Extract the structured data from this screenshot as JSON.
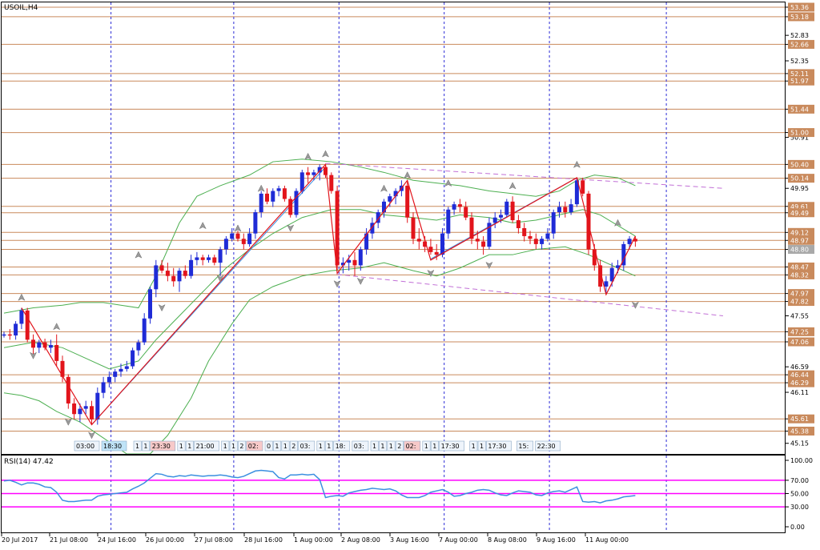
{
  "symbol": "USOIL,H4",
  "rsi_label": "RSI(14) 47.42",
  "colors": {
    "bull": "#1f2bd6",
    "bear": "#e2141b",
    "hline": "#c98a5c",
    "bollinger": "#4caf50",
    "trend": "#3b8fe0",
    "channel": "#c16fd6",
    "zigzag": "#e2141b",
    "rsi_line": "#3b8fe0",
    "rsi_level": "#ff00ff",
    "badge": "#c98a5c"
  },
  "axis_labels": [
    "53.36",
    "53.18",
    "52.83",
    "52.66",
    "52.35",
    "52.11",
    "51.97",
    "51.44",
    "51.00",
    "50.91",
    "50.40",
    "50.14",
    "49.95",
    "49.61",
    "49.49",
    "49.12",
    "48.97",
    "48.80",
    "48.47",
    "48.32",
    "47.97",
    "47.82",
    "47.55",
    "47.25",
    "47.06",
    "46.59",
    "46.44",
    "46.29",
    "46.11",
    "45.61",
    "45.38",
    "45.15"
  ],
  "price_badges": [
    "53.36",
    "53.18",
    "52.66",
    "52.11",
    "51.97",
    "51.44",
    "51.00",
    "50.40",
    "50.14",
    "49.61",
    "49.49",
    "49.12",
    "48.97",
    "48.80",
    "48.47",
    "48.32",
    "47.97",
    "47.82",
    "47.25",
    "47.06",
    "46.44",
    "46.29",
    "45.61",
    "45.38"
  ],
  "time_labels": [
    "20 Jul 2017",
    "21 Jul 08:00",
    "24 Jul 16:00",
    "26 Jul 00:00",
    "27 Jul 08:00",
    "28 Jul 16:00",
    "1 Aug 00:00",
    "2 Aug 08:00",
    "3 Aug 16:00",
    "7 Aug 00:00",
    "8 Aug 08:00",
    "9 Aug 16:00",
    "11 Aug 00:00"
  ],
  "rsi_axis": [
    "100.00",
    "70.00",
    "50.00",
    "30.00",
    "0.00"
  ],
  "event_tags": [
    "03:00",
    "18:30",
    "1",
    "1",
    "23:30",
    "1",
    "1",
    "21:00",
    "1",
    "1",
    "2",
    "02:",
    "0",
    "1",
    "1",
    "2",
    "03:",
    "1",
    "1",
    "18:",
    "03:",
    "1",
    "1",
    "1",
    "2",
    "02:",
    "1",
    "1",
    "17:30",
    "1",
    "1",
    "17:30",
    "15:",
    "22:30"
  ],
  "chart_data": {
    "type": "candlestick",
    "ylim": [
      44.95,
      53.45
    ],
    "rsi_ylim": [
      0,
      100
    ],
    "rsi_levels": [
      70,
      50,
      30
    ],
    "price_levels": [
      53.36,
      53.18,
      52.66,
      52.11,
      51.97,
      51.44,
      51.0,
      50.4,
      50.14,
      49.61,
      49.49,
      49.12,
      48.97,
      48.8,
      48.47,
      48.32,
      47.97,
      47.82,
      47.25,
      47.06,
      46.44,
      46.29,
      45.61,
      45.38
    ],
    "candles": [
      [
        47.2,
        47.25,
        47.14,
        47.2
      ],
      [
        47.2,
        47.3,
        47.1,
        47.18
      ],
      [
        47.18,
        47.45,
        47.1,
        47.4
      ],
      [
        47.4,
        47.7,
        47.3,
        47.65
      ],
      [
        47.65,
        47.7,
        47.05,
        47.1
      ],
      [
        47.1,
        47.2,
        46.8,
        46.95
      ],
      [
        46.95,
        47.1,
        46.85,
        47.05
      ],
      [
        47.05,
        47.12,
        46.9,
        46.95
      ],
      [
        46.95,
        47.1,
        46.85,
        47.0
      ],
      [
        47.0,
        47.2,
        46.6,
        46.7
      ],
      [
        46.7,
        46.8,
        46.3,
        46.4
      ],
      [
        46.4,
        46.45,
        45.8,
        45.9
      ],
      [
        45.9,
        46.0,
        45.6,
        45.7
      ],
      [
        45.7,
        45.9,
        45.55,
        45.8
      ],
      [
        45.8,
        45.95,
        45.7,
        45.85
      ],
      [
        45.85,
        45.95,
        45.5,
        45.6
      ],
      [
        45.6,
        46.2,
        45.5,
        46.1
      ],
      [
        46.1,
        46.4,
        46.0,
        46.3
      ],
      [
        46.3,
        46.5,
        46.2,
        46.4
      ],
      [
        46.4,
        46.55,
        46.3,
        46.5
      ],
      [
        46.5,
        46.65,
        46.4,
        46.55
      ],
      [
        46.55,
        46.7,
        46.5,
        46.6
      ],
      [
        46.6,
        46.95,
        46.55,
        46.9
      ],
      [
        46.9,
        47.1,
        46.8,
        47.05
      ],
      [
        47.05,
        47.6,
        47.0,
        47.5
      ],
      [
        47.5,
        48.1,
        47.4,
        48.05
      ],
      [
        48.05,
        48.6,
        47.9,
        48.5
      ],
      [
        48.5,
        48.6,
        48.35,
        48.4
      ],
      [
        48.4,
        48.55,
        48.2,
        48.3
      ],
      [
        48.3,
        48.45,
        48.1,
        48.2
      ],
      [
        48.2,
        48.45,
        48.0,
        48.4
      ],
      [
        48.4,
        48.5,
        48.25,
        48.3
      ],
      [
        48.3,
        48.7,
        48.25,
        48.6
      ],
      [
        48.6,
        48.75,
        48.5,
        48.65
      ],
      [
        48.65,
        48.7,
        48.5,
        48.6
      ],
      [
        48.6,
        48.7,
        48.55,
        48.65
      ],
      [
        48.65,
        48.7,
        48.5,
        48.55
      ],
      [
        48.55,
        48.85,
        48.3,
        48.8
      ],
      [
        48.8,
        49.05,
        48.7,
        49.0
      ],
      [
        49.0,
        49.2,
        48.95,
        49.1
      ],
      [
        49.1,
        49.15,
        48.95,
        49.0
      ],
      [
        49.0,
        49.1,
        48.8,
        48.9
      ],
      [
        48.9,
        49.2,
        48.85,
        49.1
      ],
      [
        49.1,
        49.55,
        49.0,
        49.5
      ],
      [
        49.5,
        49.9,
        49.4,
        49.85
      ],
      [
        49.85,
        49.95,
        49.65,
        49.7
      ],
      [
        49.7,
        49.95,
        49.6,
        49.9
      ],
      [
        49.9,
        50.0,
        49.8,
        49.95
      ],
      [
        49.95,
        50.0,
        49.7,
        49.75
      ],
      [
        49.75,
        49.8,
        49.4,
        49.45
      ],
      [
        49.45,
        49.95,
        49.4,
        49.9
      ],
      [
        49.9,
        50.3,
        49.85,
        50.25
      ],
      [
        50.25,
        50.35,
        50.05,
        50.2
      ],
      [
        50.2,
        50.3,
        50.1,
        50.25
      ],
      [
        50.25,
        50.4,
        50.1,
        50.35
      ],
      [
        50.35,
        50.4,
        50.15,
        50.2
      ],
      [
        50.2,
        50.25,
        49.85,
        49.9
      ],
      [
        49.9,
        50.0,
        48.4,
        48.5
      ],
      [
        48.5,
        48.65,
        48.35,
        48.55
      ],
      [
        48.55,
        48.7,
        48.4,
        48.6
      ],
      [
        48.6,
        48.75,
        48.3,
        48.5
      ],
      [
        48.5,
        48.85,
        48.4,
        48.8
      ],
      [
        48.8,
        49.2,
        48.7,
        49.1
      ],
      [
        49.1,
        49.4,
        49.0,
        49.3
      ],
      [
        49.3,
        49.55,
        49.2,
        49.5
      ],
      [
        49.5,
        49.75,
        49.4,
        49.7
      ],
      [
        49.7,
        49.85,
        49.6,
        49.8
      ],
      [
        49.8,
        49.95,
        49.65,
        49.9
      ],
      [
        49.9,
        50.1,
        49.8,
        50.0
      ],
      [
        50.0,
        50.1,
        49.3,
        49.4
      ],
      [
        49.4,
        49.5,
        48.9,
        49.0
      ],
      [
        49.0,
        49.2,
        48.8,
        48.95
      ],
      [
        48.95,
        49.05,
        48.75,
        48.85
      ],
      [
        48.85,
        49.0,
        48.7,
        48.75
      ],
      [
        48.75,
        48.9,
        48.6,
        48.7
      ],
      [
        48.7,
        49.2,
        48.65,
        49.1
      ],
      [
        49.1,
        49.6,
        49.0,
        49.55
      ],
      [
        49.55,
        49.7,
        49.45,
        49.65
      ],
      [
        49.65,
        49.75,
        49.5,
        49.6
      ],
      [
        49.6,
        49.7,
        49.35,
        49.4
      ],
      [
        49.4,
        49.5,
        48.9,
        49.0
      ],
      [
        49.0,
        49.15,
        48.8,
        48.95
      ],
      [
        48.95,
        49.05,
        48.7,
        48.85
      ],
      [
        48.85,
        49.4,
        48.8,
        49.3
      ],
      [
        49.3,
        49.5,
        49.2,
        49.4
      ],
      [
        49.4,
        49.55,
        49.3,
        49.45
      ],
      [
        49.45,
        49.75,
        49.4,
        49.7
      ],
      [
        49.7,
        49.8,
        49.3,
        49.35
      ],
      [
        49.35,
        49.45,
        49.1,
        49.2
      ],
      [
        49.2,
        49.3,
        48.95,
        49.05
      ],
      [
        49.05,
        49.15,
        48.9,
        49.0
      ],
      [
        49.0,
        49.1,
        48.8,
        48.9
      ],
      [
        48.9,
        49.05,
        48.8,
        49.0
      ],
      [
        49.0,
        49.2,
        48.95,
        49.1
      ],
      [
        49.1,
        49.55,
        49.0,
        49.5
      ],
      [
        49.5,
        49.7,
        49.4,
        49.6
      ],
      [
        49.6,
        49.7,
        49.4,
        49.5
      ],
      [
        49.5,
        49.75,
        49.45,
        49.65
      ],
      [
        49.65,
        50.15,
        49.6,
        50.1
      ],
      [
        50.1,
        50.15,
        49.8,
        49.85
      ],
      [
        49.85,
        49.9,
        48.7,
        48.8
      ],
      [
        48.8,
        48.9,
        48.4,
        48.5
      ],
      [
        48.5,
        48.6,
        48.0,
        48.1
      ],
      [
        48.1,
        48.3,
        47.95,
        48.2
      ],
      [
        48.2,
        48.55,
        48.1,
        48.45
      ],
      [
        48.45,
        48.6,
        48.35,
        48.5
      ],
      [
        48.5,
        48.95,
        48.4,
        48.9
      ],
      [
        48.9,
        49.05,
        48.8,
        49.0
      ],
      [
        49.0,
        49.05,
        48.85,
        48.95
      ]
    ],
    "rsi": [
      69,
      70,
      67,
      63,
      66,
      66,
      64,
      60,
      59,
      52,
      40,
      38,
      38,
      39,
      40,
      40,
      46,
      48,
      49,
      50,
      51,
      52,
      57,
      61,
      66,
      73,
      80,
      79,
      76,
      75,
      77,
      76,
      78,
      77,
      76,
      77,
      77,
      78,
      77,
      75,
      74,
      76,
      80,
      84,
      85,
      84,
      83,
      74,
      72,
      78,
      78,
      79,
      78,
      79,
      71,
      44,
      46,
      47,
      46,
      51,
      53,
      55,
      56,
      58,
      57,
      56,
      57,
      54,
      48,
      44,
      44,
      44,
      47,
      52,
      54,
      56,
      52,
      46,
      47,
      50,
      52,
      55,
      56,
      55,
      51,
      48,
      47,
      51,
      54,
      53,
      52,
      48,
      47,
      51,
      53,
      54,
      52,
      56,
      60,
      38,
      37,
      38,
      36,
      39,
      40,
      42,
      45,
      46,
      47
    ],
    "bollinger": {
      "upper": [
        [
          0,
          47.6
        ],
        [
          5,
          47.7
        ],
        [
          10,
          47.75
        ],
        [
          13,
          47.8
        ],
        [
          17,
          47.8
        ],
        [
          20,
          47.75
        ],
        [
          23,
          47.7
        ],
        [
          26,
          48.3
        ],
        [
          30,
          49.3
        ],
        [
          33,
          49.8
        ],
        [
          37,
          50.0
        ],
        [
          42,
          50.2
        ],
        [
          46,
          50.45
        ],
        [
          51,
          50.5
        ],
        [
          56,
          50.45
        ],
        [
          61,
          50.35
        ],
        [
          65,
          50.25
        ],
        [
          70,
          50.1
        ],
        [
          74,
          50.05
        ],
        [
          78,
          50.0
        ],
        [
          83,
          49.9
        ],
        [
          87,
          49.85
        ],
        [
          91,
          49.8
        ],
        [
          95,
          49.9
        ],
        [
          98,
          50.1
        ],
        [
          101,
          50.2
        ],
        [
          105,
          50.15
        ],
        [
          108,
          50.0
        ]
      ],
      "middle": [
        [
          0,
          46.95
        ],
        [
          5,
          47.05
        ],
        [
          10,
          46.95
        ],
        [
          14,
          46.75
        ],
        [
          18,
          46.55
        ],
        [
          23,
          46.7
        ],
        [
          26,
          47.1
        ],
        [
          30,
          47.55
        ],
        [
          34,
          48.0
        ],
        [
          38,
          48.45
        ],
        [
          42,
          48.8
        ],
        [
          46,
          49.1
        ],
        [
          51,
          49.4
        ],
        [
          56,
          49.55
        ],
        [
          61,
          49.55
        ],
        [
          65,
          49.45
        ],
        [
          70,
          49.4
        ],
        [
          74,
          49.35
        ],
        [
          78,
          49.45
        ],
        [
          83,
          49.4
        ],
        [
          87,
          49.3
        ],
        [
          91,
          49.35
        ],
        [
          95,
          49.45
        ],
        [
          99,
          49.55
        ],
        [
          102,
          49.45
        ],
        [
          105,
          49.25
        ],
        [
          108,
          49.05
        ]
      ],
      "lower": [
        [
          0,
          46.1
        ],
        [
          3,
          46.05
        ],
        [
          6,
          45.95
        ],
        [
          9,
          45.75
        ],
        [
          13,
          45.55
        ],
        [
          17,
          45.25
        ],
        [
          21,
          44.95
        ],
        [
          25,
          44.95
        ],
        [
          28,
          45.3
        ],
        [
          32,
          46.0
        ],
        [
          35,
          46.7
        ],
        [
          39,
          47.4
        ],
        [
          42,
          47.85
        ],
        [
          46,
          48.1
        ],
        [
          51,
          48.3
        ],
        [
          56,
          48.4
        ],
        [
          61,
          48.45
        ],
        [
          65,
          48.55
        ],
        [
          70,
          48.4
        ],
        [
          74,
          48.3
        ],
        [
          78,
          48.45
        ],
        [
          83,
          48.7
        ],
        [
          87,
          48.7
        ],
        [
          91,
          48.8
        ],
        [
          96,
          48.85
        ],
        [
          100,
          48.7
        ],
        [
          104,
          48.5
        ],
        [
          108,
          48.3
        ]
      ]
    },
    "zigzag": [
      [
        3,
        47.7
      ],
      [
        15,
        45.5
      ],
      [
        55,
        50.4
      ],
      [
        57,
        48.35
      ],
      [
        69,
        50.1
      ],
      [
        73,
        48.6
      ],
      [
        98,
        50.15
      ],
      [
        103,
        47.95
      ],
      [
        108,
        49.05
      ]
    ],
    "trendlines": [
      [
        [
          15,
          45.5
        ],
        [
          55,
          50.35
        ]
      ],
      [
        [
          73,
          48.62
        ],
        [
          98,
          50.15
        ]
      ]
    ],
    "channel": [
      [
        [
          55,
          50.42
        ],
        [
          123,
          49.95
        ]
      ],
      [
        [
          57,
          48.33
        ],
        [
          123,
          47.55
        ]
      ]
    ],
    "arrows": [
      [
        3,
        47.75,
        "up"
      ],
      [
        5,
        46.95,
        "down"
      ],
      [
        9,
        47.2,
        "up"
      ],
      [
        11,
        45.7,
        "down"
      ],
      [
        15,
        45.45,
        "down"
      ],
      [
        23,
        48.55,
        "up"
      ],
      [
        27,
        47.85,
        "down"
      ],
      [
        34,
        49.1,
        "up"
      ],
      [
        37,
        48.4,
        "down"
      ],
      [
        40,
        49.05,
        "up"
      ],
      [
        44,
        49.8,
        "up"
      ],
      [
        49,
        49.35,
        "down"
      ],
      [
        52,
        50.4,
        "up"
      ],
      [
        55,
        50.45,
        "up"
      ],
      [
        57,
        48.3,
        "down"
      ],
      [
        61,
        48.35,
        "down"
      ],
      [
        65,
        49.8,
        "up"
      ],
      [
        69,
        50.05,
        "up"
      ],
      [
        73,
        48.5,
        "down"
      ],
      [
        76,
        49.9,
        "up"
      ],
      [
        83,
        48.65,
        "down"
      ],
      [
        87,
        49.85,
        "up"
      ],
      [
        98,
        50.25,
        "up"
      ],
      [
        105,
        49.15,
        "up"
      ],
      [
        108,
        47.9,
        "down"
      ]
    ],
    "vertical_dividers": [
      6,
      27,
      45,
      63,
      81,
      101
    ]
  }
}
